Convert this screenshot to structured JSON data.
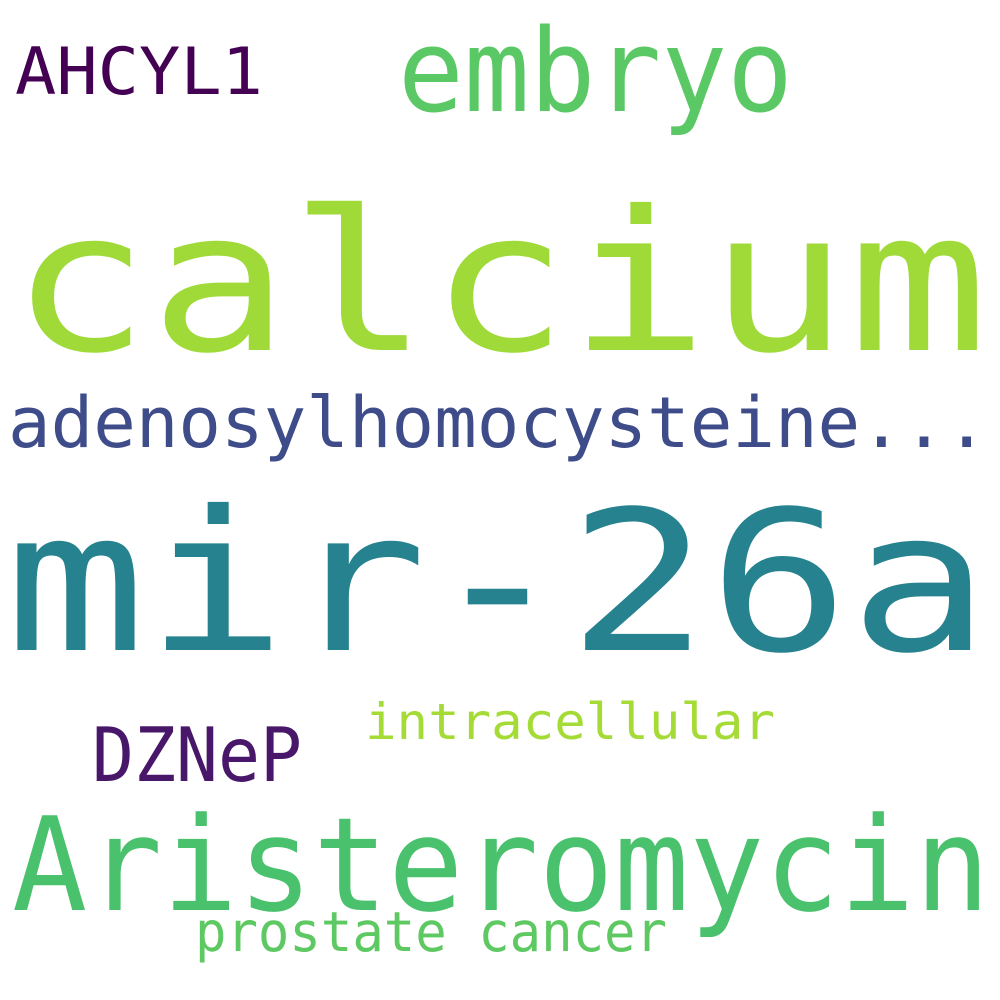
{
  "words": [
    {
      "text": "calcium",
      "color": "#a0da39"
    },
    {
      "text": "mir-26a",
      "color": "#26828e"
    },
    {
      "text": "Aristeromycin",
      "color": "#4ac16d"
    },
    {
      "text": "embryo",
      "color": "#5ac864"
    },
    {
      "text": "adenosylhomocysteine...",
      "color": "#3e4c8a"
    },
    {
      "text": "AHCYL1",
      "color": "#440154"
    },
    {
      "text": "DZNeP",
      "color": "#481769"
    },
    {
      "text": "intracellular",
      "color": "#a5db36"
    },
    {
      "text": "prostate cancer",
      "color": "#5ec962"
    }
  ]
}
